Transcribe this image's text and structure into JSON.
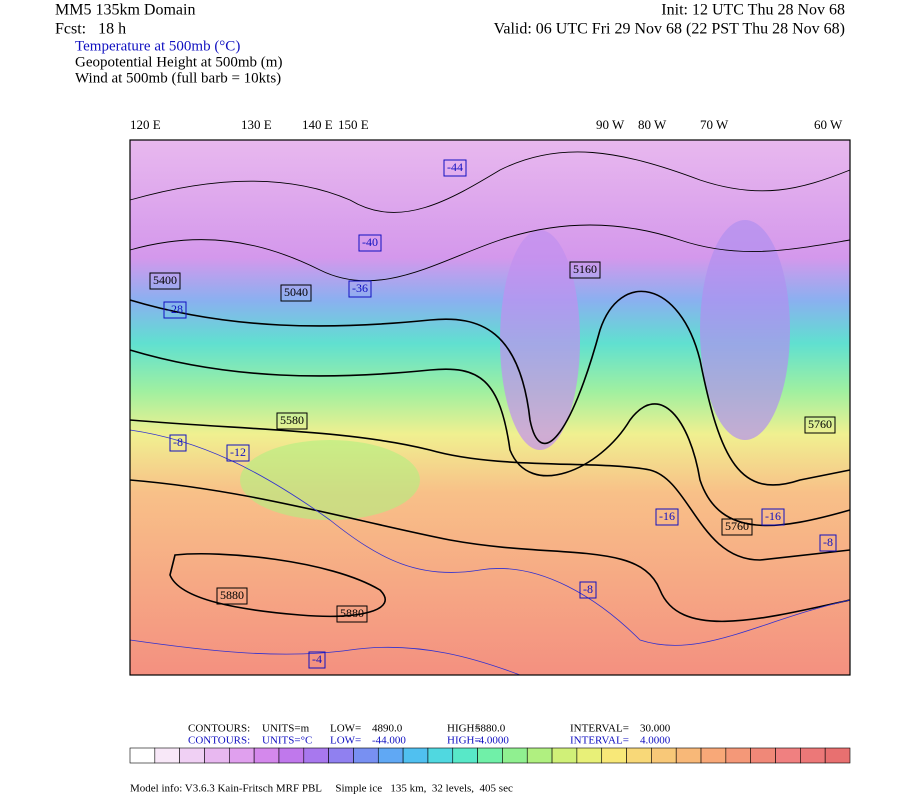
{
  "header": {
    "domain": "MM5 135km Domain",
    "init": "Init: 12 UTC Thu 28 Nov 68",
    "fcst": "Fcst:   18 h",
    "valid": "Valid: 06 UTC Fri 29 Nov 68 (22 PST Thu 28 Nov 68)",
    "fields": [
      "Temperature at 500mb (°C)",
      "Geopotential Height at 500mb (m)",
      "Wind at 500mb (full barb = 10kts)"
    ]
  },
  "longitudes": [
    "120 E",
    "130 E",
    "140 E",
    "150 E",
    "90 W",
    "80 W",
    "70 W",
    "60 W"
  ],
  "temperature_labels": [
    "-44",
    "-40",
    "-36",
    "-28",
    "-12",
    "-8",
    "-8",
    "-4",
    "-16",
    "-16",
    "-8"
  ],
  "height_labels": [
    "5400",
    "5040",
    "5580",
    "5880",
    "5880",
    "5760",
    "5160",
    "5760"
  ],
  "footer": {
    "height_contours": [
      "CONTOURS:",
      "UNITS=m",
      "LOW=",
      "4890.0",
      "HIGH=",
      "5880.0",
      "INTERVAL=",
      "30.000"
    ],
    "temperature_contours": [
      "CONTOURS:",
      "UNITS=°C",
      "LOW=",
      "-44.000",
      "HIGH=",
      "-4.0000",
      "INTERVAL=",
      "4.0000"
    ],
    "model_info": "Model info: V3.6.3 Kain-Fritsch MRF PBL     Simple ice   135 km,  32 levels,  405 sec"
  }
}
